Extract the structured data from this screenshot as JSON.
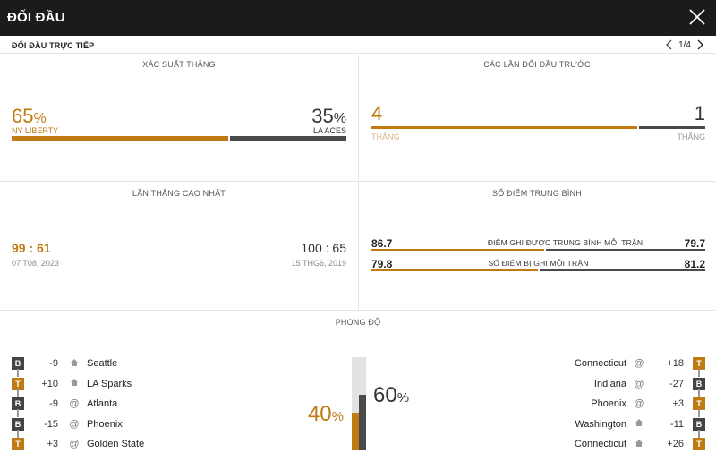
{
  "header": {
    "title": "ĐỐI ĐẦU"
  },
  "subheader": {
    "label": "ĐỐI ĐẦU TRỰC TIẾP",
    "page": "1/4"
  },
  "colors": {
    "accent": "#c07a12",
    "dark": "#4a4a4a",
    "light": "#e2e2e2"
  },
  "win_prob": {
    "title": "XÁC SUẤT THẮNG",
    "home": {
      "value": "65",
      "pct": 65,
      "symbol": "%",
      "team": "NY LIBERTY"
    },
    "away": {
      "value": "35",
      "pct": 35,
      "symbol": "%",
      "team": "LA ACES"
    }
  },
  "prev_meetings": {
    "title": "CÁC LẦN ĐỐI ĐẦU TRƯỚC",
    "home": {
      "value": "4",
      "label": "THẮNG"
    },
    "away": {
      "value": "1",
      "label": "THẮNG"
    },
    "home_share": 0.8
  },
  "biggest_win": {
    "title": "LẦN THẮNG CAO NHẤT",
    "home": {
      "score": "99 : 61",
      "date": "07 T08, 2023"
    },
    "away": {
      "score": "100 : 65",
      "date": "15 THG6, 2019"
    }
  },
  "avg_points": {
    "title": "SỐ ĐIỂM TRUNG BÌNH",
    "rows": [
      {
        "home": "86.7",
        "label": "ĐIỂM GHI ĐƯỢC TRUNG BÌNH MỖI TRẬN",
        "away": "79.7",
        "home_share": 0.52
      },
      {
        "home": "79.8",
        "label": "SỐ ĐIỂM BỊ GHI MỖI TRẬN",
        "away": "81.2",
        "home_share": 0.5
      }
    ]
  },
  "form": {
    "title": "PHONG ĐỘ",
    "home_pct": {
      "value": "40",
      "pct": 40,
      "symbol": "%"
    },
    "away_pct": {
      "value": "60",
      "pct": 60,
      "symbol": "%"
    },
    "home": [
      {
        "result": "B",
        "margin": "-9",
        "venue": "home",
        "opponent": "Seattle"
      },
      {
        "result": "T",
        "margin": "+10",
        "venue": "home",
        "opponent": "LA Sparks"
      },
      {
        "result": "B",
        "margin": "-9",
        "venue": "@",
        "opponent": "Atlanta"
      },
      {
        "result": "B",
        "margin": "-15",
        "venue": "@",
        "opponent": "Phoenix"
      },
      {
        "result": "T",
        "margin": "+3",
        "venue": "@",
        "opponent": "Golden State"
      }
    ],
    "away": [
      {
        "result": "T",
        "margin": "+18",
        "venue": "@",
        "opponent": "Connecticut"
      },
      {
        "result": "B",
        "margin": "-27",
        "venue": "@",
        "opponent": "Indiana"
      },
      {
        "result": "T",
        "margin": "+3",
        "venue": "@",
        "opponent": "Phoenix"
      },
      {
        "result": "B",
        "margin": "-11",
        "venue": "home",
        "opponent": "Washington"
      },
      {
        "result": "T",
        "margin": "+26",
        "venue": "home",
        "opponent": "Connecticut"
      }
    ]
  }
}
